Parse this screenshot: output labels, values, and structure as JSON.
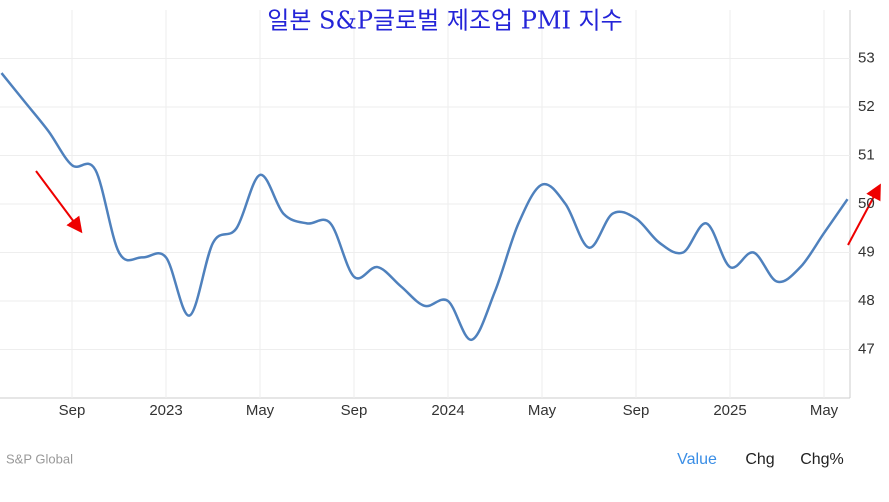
{
  "chart_data": {
    "type": "line",
    "title": "일본 S&P글로벌 제조업 PMI 지수",
    "categories": [
      null,
      null,
      null,
      "Sep",
      null,
      null,
      null,
      "2023",
      null,
      null,
      null,
      "May",
      null,
      null,
      null,
      "Sep",
      null,
      null,
      null,
      "2024",
      null,
      null,
      null,
      "May",
      null,
      null,
      null,
      "Sep",
      null,
      null,
      null,
      "2025",
      null,
      null,
      null,
      "May",
      null
    ],
    "series": [
      {
        "name": "Value",
        "color": "#4f81bd",
        "values": [
          52.7,
          52.1,
          51.5,
          50.8,
          50.7,
          49.0,
          48.9,
          48.9,
          47.7,
          49.2,
          49.5,
          50.6,
          49.8,
          49.6,
          49.6,
          48.5,
          48.7,
          48.3,
          47.9,
          48.0,
          47.2,
          48.2,
          49.6,
          50.4,
          50.0,
          49.1,
          49.8,
          49.7,
          49.2,
          49.0,
          49.6,
          48.7,
          49.0,
          48.4,
          48.7,
          49.4,
          50.1
        ]
      }
    ],
    "ylim": [
      46,
      54
    ],
    "yticks": [
      47,
      48,
      49,
      50,
      51,
      52,
      53
    ],
    "baseline": 50,
    "grid": true
  },
  "footer": {
    "source": "S&P Global",
    "tabs": [
      "Value",
      "Chg",
      "Chg%"
    ]
  }
}
